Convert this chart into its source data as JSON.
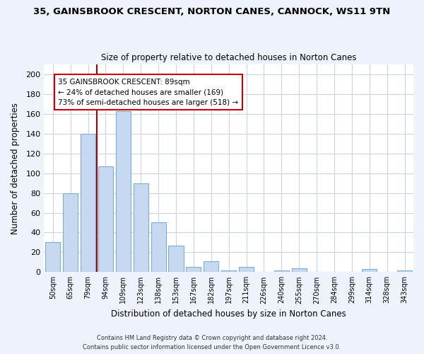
{
  "title": "35, GAINSBROOK CRESCENT, NORTON CANES, CANNOCK, WS11 9TN",
  "subtitle": "Size of property relative to detached houses in Norton Canes",
  "xlabel": "Distribution of detached houses by size in Norton Canes",
  "ylabel": "Number of detached properties",
  "bar_labels": [
    "50sqm",
    "65sqm",
    "79sqm",
    "94sqm",
    "109sqm",
    "123sqm",
    "138sqm",
    "153sqm",
    "167sqm",
    "182sqm",
    "197sqm",
    "211sqm",
    "226sqm",
    "240sqm",
    "255sqm",
    "270sqm",
    "284sqm",
    "299sqm",
    "314sqm",
    "328sqm",
    "343sqm"
  ],
  "bar_values": [
    30,
    80,
    140,
    107,
    163,
    90,
    50,
    27,
    5,
    11,
    2,
    5,
    0,
    2,
    4,
    0,
    0,
    0,
    3,
    0,
    2
  ],
  "bar_color": "#c6d9f0",
  "bar_edge_color": "#7aaed6",
  "ylim": [
    0,
    210
  ],
  "yticks": [
    0,
    20,
    40,
    60,
    80,
    100,
    120,
    140,
    160,
    180,
    200
  ],
  "vline_color": "#aa0000",
  "annotation_title": "35 GAINSBROOK CRESCENT: 89sqm",
  "annotation_line1": "← 24% of detached houses are smaller (169)",
  "annotation_line2": "73% of semi-detached houses are larger (518) →",
  "footer_line1": "Contains HM Land Registry data © Crown copyright and database right 2024.",
  "footer_line2": "Contains public sector information licensed under the Open Government Licence v3.0.",
  "background_color": "#eef3fb",
  "plot_bg_color": "#ffffff",
  "grid_color": "#c8d4e8"
}
